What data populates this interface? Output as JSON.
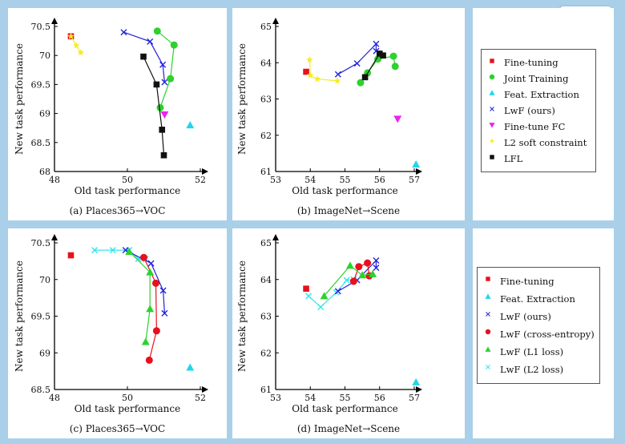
{
  "toolbar": {
    "image_button_icon": "image-icon"
  },
  "colors": {
    "Fine-tuning": "#e8101e",
    "Joint Training": "#2ed12e",
    "Feat. Extraction": "#22d6ea",
    "LwF (ours)": "#2222dd",
    "Fine-tune FC": "#ee22ee",
    "L2 soft constraint": "#f4ec2a",
    "LFL": "#111111",
    "LwF (cross-entropy)": "#e8101e",
    "LwF (L1 loss)": "#2ed12e",
    "LwF (L2 loss)": "#33e4ee"
  },
  "legend_top": {
    "items": [
      "Fine-tuning",
      "Joint Training",
      "Feat. Extraction",
      "LwF (ours)",
      "Fine-tune FC",
      "L2 soft constraint",
      "LFL"
    ],
    "markers": [
      "square",
      "circle",
      "triangle-up",
      "x",
      "triangle-down",
      "star",
      "square"
    ]
  },
  "legend_bottom": {
    "items": [
      "Fine-tuning",
      "Feat. Extraction",
      "LwF (ours)",
      "LwF (cross-entropy)",
      "LwF (L1 loss)",
      "LwF (L2 loss)"
    ],
    "markers": [
      "square",
      "triangle-up",
      "x",
      "circle",
      "triangle-up",
      "x"
    ]
  },
  "chart_data": [
    {
      "type": "line",
      "caption": "(a) Places365→VOC",
      "xlabel": "Old task performance",
      "ylabel": "New task performance",
      "xlim": [
        48,
        52
      ],
      "ylim": [
        68,
        70.5
      ],
      "xticks": [
        48,
        50,
        52
      ],
      "yticks": [
        68,
        68.5,
        69,
        69.5,
        70,
        70.5
      ],
      "series": [
        {
          "name": "Fine-tuning",
          "marker": "square",
          "points": [
            [
              48.45,
              70.33
            ]
          ]
        },
        {
          "name": "L2 soft constraint",
          "marker": "star",
          "points": [
            [
              48.45,
              70.33
            ],
            [
              48.6,
              70.17
            ],
            [
              48.72,
              70.05
            ]
          ]
        },
        {
          "name": "LwF (ours)",
          "marker": "x",
          "points": [
            [
              49.9,
              70.4
            ],
            [
              50.62,
              70.24
            ],
            [
              50.97,
              69.84
            ],
            [
              51.02,
              69.54
            ]
          ]
        },
        {
          "name": "Joint Training",
          "marker": "circle",
          "points": [
            [
              50.82,
              70.42
            ],
            [
              51.28,
              70.18
            ],
            [
              51.18,
              69.6
            ],
            [
              50.9,
              69.1
            ]
          ]
        },
        {
          "name": "LFL",
          "marker": "square",
          "points": [
            [
              50.44,
              69.98
            ],
            [
              50.8,
              69.5
            ],
            [
              50.95,
              68.72
            ],
            [
              51.0,
              68.28
            ]
          ]
        },
        {
          "name": "Fine-tune FC",
          "marker": "triangle-down",
          "points": [
            [
              51.02,
              68.98
            ]
          ]
        },
        {
          "name": "Feat. Extraction",
          "marker": "triangle-up",
          "points": [
            [
              51.72,
              68.8
            ]
          ]
        }
      ]
    },
    {
      "type": "line",
      "caption": "(b) ImageNet→Scene",
      "xlabel": "Old task performance",
      "ylabel": "New task performance",
      "xlim": [
        53,
        57
      ],
      "ylim": [
        61,
        65
      ],
      "xticks": [
        53,
        54,
        55,
        56,
        57
      ],
      "yticks": [
        61,
        62,
        63,
        64,
        65
      ],
      "series": [
        {
          "name": "Fine-tuning",
          "marker": "square",
          "points": [
            [
              53.88,
              63.75
            ]
          ]
        },
        {
          "name": "L2 soft constraint",
          "marker": "star",
          "points": [
            [
              53.98,
              64.08
            ],
            [
              54.0,
              63.65
            ],
            [
              54.2,
              63.55
            ],
            [
              54.78,
              63.5
            ]
          ]
        },
        {
          "name": "LwF (ours)",
          "marker": "x",
          "points": [
            [
              54.8,
              63.68
            ],
            [
              55.35,
              63.98
            ],
            [
              55.9,
              64.52
            ],
            [
              55.9,
              64.32
            ]
          ]
        },
        {
          "name": "Joint Training",
          "marker": "circle",
          "points": [
            [
              55.45,
              63.45
            ],
            [
              55.65,
              63.72
            ],
            [
              55.95,
              64.1
            ],
            [
              56.4,
              64.18
            ],
            [
              56.45,
              63.9
            ]
          ]
        },
        {
          "name": "LFL",
          "marker": "square",
          "points": [
            [
              55.58,
              63.6
            ],
            [
              56.0,
              64.25
            ],
            [
              56.1,
              64.2
            ]
          ]
        },
        {
          "name": "Fine-tune FC",
          "marker": "triangle-down",
          "points": [
            [
              56.52,
              62.45
            ]
          ]
        },
        {
          "name": "Feat. Extraction",
          "marker": "triangle-up",
          "points": [
            [
              57.05,
              61.2
            ]
          ]
        }
      ]
    },
    {
      "type": "line",
      "caption": "(c) Places365→VOC",
      "xlabel": "Old task performance",
      "ylabel": "New task performance",
      "xlim": [
        48,
        52
      ],
      "ylim": [
        68.5,
        70.5
      ],
      "xticks": [
        48,
        50,
        52
      ],
      "yticks": [
        68.5,
        69,
        69.5,
        70,
        70.5
      ],
      "series": [
        {
          "name": "Fine-tuning",
          "marker": "square",
          "points": [
            [
              48.45,
              70.33
            ]
          ]
        },
        {
          "name": "LwF (L2 loss)",
          "marker": "x",
          "points": [
            [
              49.1,
              70.4
            ],
            [
              49.6,
              70.4
            ],
            [
              50.05,
              70.4
            ],
            [
              50.3,
              70.28
            ],
            [
              50.5,
              70.28
            ]
          ]
        },
        {
          "name": "LwF (ours)",
          "marker": "x",
          "points": [
            [
              49.95,
              70.4
            ],
            [
              50.65,
              70.22
            ],
            [
              50.98,
              69.85
            ],
            [
              51.02,
              69.54
            ]
          ]
        },
        {
          "name": "LwF (cross-entropy)",
          "marker": "circle",
          "points": [
            [
              50.45,
              70.3
            ],
            [
              50.78,
              69.95
            ],
            [
              50.8,
              69.3
            ],
            [
              50.6,
              68.9
            ]
          ]
        },
        {
          "name": "LwF (L1 loss)",
          "marker": "triangle-up",
          "points": [
            [
              50.05,
              70.38
            ],
            [
              50.62,
              70.1
            ],
            [
              50.62,
              69.6
            ],
            [
              50.5,
              69.15
            ]
          ]
        },
        {
          "name": "Feat. Extraction",
          "marker": "triangle-up",
          "points": [
            [
              51.72,
              68.8
            ]
          ]
        }
      ]
    },
    {
      "type": "line",
      "caption": "(d) ImageNet→Scene",
      "xlabel": "Old task performance",
      "ylabel": "New task performance",
      "xlim": [
        53,
        57
      ],
      "ylim": [
        61,
        65
      ],
      "xticks": [
        53,
        54,
        55,
        56,
        57
      ],
      "yticks": [
        61,
        62,
        63,
        64,
        65
      ],
      "series": [
        {
          "name": "Fine-tuning",
          "marker": "square",
          "points": [
            [
              53.88,
              63.75
            ]
          ]
        },
        {
          "name": "LwF (L2 loss)",
          "marker": "x",
          "points": [
            [
              53.95,
              63.55
            ],
            [
              54.3,
              63.25
            ],
            [
              54.75,
              63.65
            ],
            [
              55.05,
              63.98
            ],
            [
              55.25,
              64.0
            ]
          ]
        },
        {
          "name": "LwF (ours)",
          "marker": "x",
          "points": [
            [
              54.8,
              63.68
            ],
            [
              55.35,
              63.98
            ],
            [
              55.9,
              64.52
            ],
            [
              55.9,
              64.32
            ]
          ]
        },
        {
          "name": "LwF (cross-entropy)",
          "marker": "circle",
          "points": [
            [
              55.25,
              63.95
            ],
            [
              55.4,
              64.35
            ],
            [
              55.65,
              64.45
            ],
            [
              55.7,
              64.1
            ]
          ]
        },
        {
          "name": "LwF (L1 loss)",
          "marker": "triangle-up",
          "points": [
            [
              54.4,
              63.55
            ],
            [
              55.15,
              64.38
            ],
            [
              55.5,
              64.12
            ],
            [
              55.8,
              64.15
            ]
          ]
        },
        {
          "name": "Feat. Extraction",
          "marker": "triangle-up",
          "points": [
            [
              57.05,
              61.2
            ]
          ]
        }
      ]
    }
  ]
}
